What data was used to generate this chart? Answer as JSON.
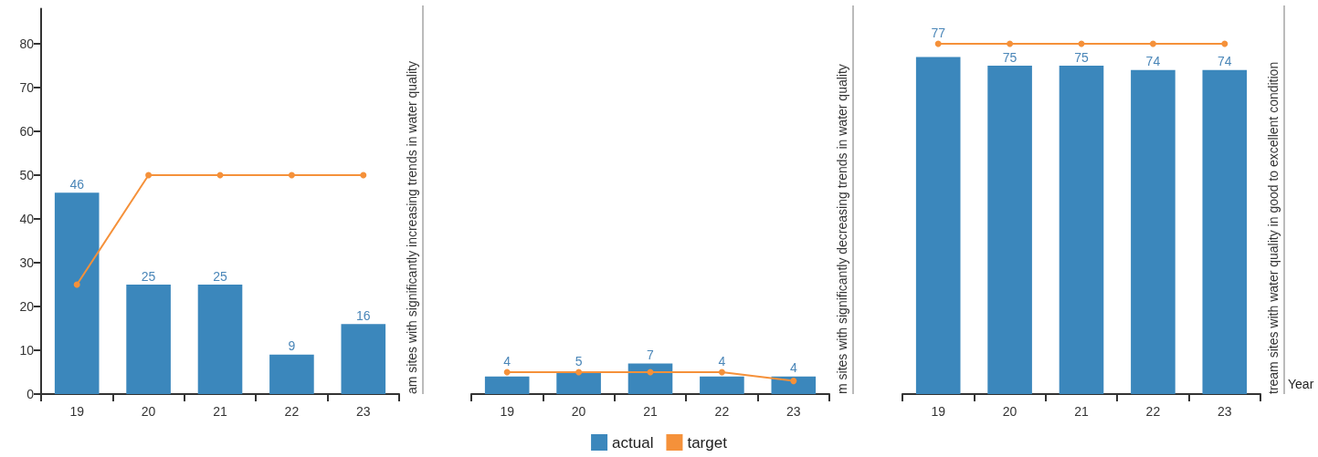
{
  "chart_data": [
    {
      "type": "bar",
      "categories": [
        "19",
        "20",
        "21",
        "22",
        "23"
      ],
      "ylim": [
        0,
        88
      ],
      "yticks": [
        0,
        10,
        20,
        30,
        40,
        50,
        60,
        70,
        80
      ],
      "grid": false,
      "legend": "bottom",
      "marker": "circle",
      "annotations": [
        "am sites with significantly increasing trends in water quality"
      ],
      "series": [
        {
          "name": "actual",
          "color": "#3b87bc",
          "values": [
            46,
            25,
            25,
            9,
            16
          ],
          "value_labels": [
            "46",
            "25",
            "25",
            "9",
            "16"
          ]
        },
        {
          "name": "target",
          "type": "line",
          "color": "#f5913a",
          "values": [
            25,
            50,
            50,
            50,
            50
          ]
        }
      ]
    },
    {
      "type": "bar",
      "categories": [
        "19",
        "20",
        "21",
        "22",
        "23"
      ],
      "ylim": [
        0,
        80
      ],
      "yticks": [
        0,
        10,
        20,
        30,
        40,
        50,
        60,
        70,
        80
      ],
      "grid": false,
      "legend": "bottom",
      "marker": "circle",
      "tick_labels": "x",
      "annotations": [
        "m sites with significantly decreasing trends in water quality"
      ],
      "series": [
        {
          "name": "actual",
          "color": "#3b87bc",
          "values": [
            4,
            5,
            7,
            4,
            4
          ],
          "value_labels": [
            "4",
            "5",
            "7",
            "4",
            "4"
          ]
        },
        {
          "name": "target",
          "type": "line",
          "color": "#f5913a",
          "values": [
            5,
            5,
            5,
            5,
            3
          ]
        }
      ]
    },
    {
      "type": "bar",
      "categories": [
        "19",
        "20",
        "21",
        "22",
        "23"
      ],
      "ylim": [
        0,
        80
      ],
      "yticks": [
        0,
        10,
        20,
        30,
        40,
        50,
        60,
        70,
        80
      ],
      "grid": false,
      "legend": "bottom",
      "marker": "circle",
      "tick_labels": "x",
      "xlabel": "Year",
      "annotations": [
        "tream sites with water quality in good to excellent condition"
      ],
      "series": [
        {
          "name": "actual",
          "color": "#3b87bc",
          "values": [
            77,
            75,
            75,
            74,
            74
          ],
          "value_labels": [
            "77",
            "75",
            "75",
            "74",
            "74"
          ]
        },
        {
          "name": "target",
          "type": "line",
          "color": "#f5913a",
          "values": [
            80,
            80,
            80,
            80,
            80
          ]
        }
      ]
    }
  ]
}
